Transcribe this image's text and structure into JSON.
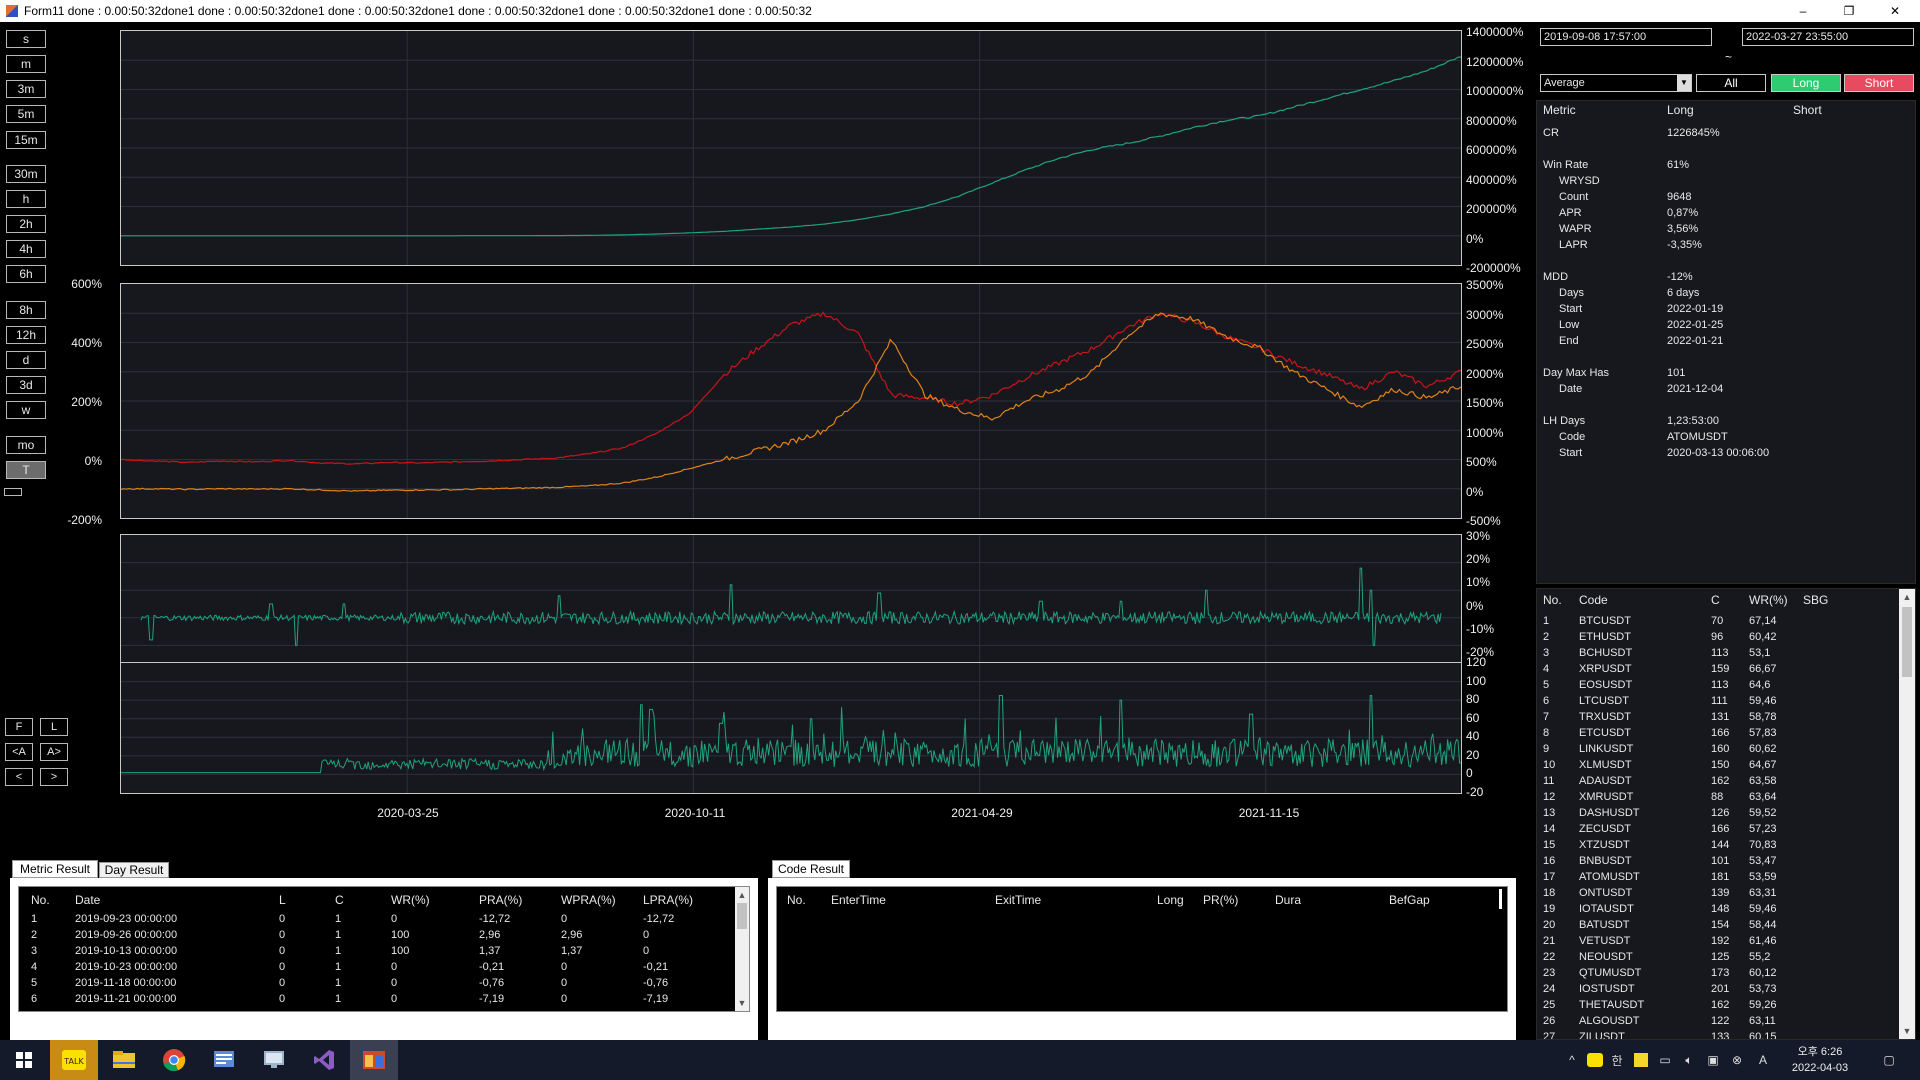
{
  "window": {
    "title": "Form11 done : 0.00:50:32done1 done : 0.00:50:32done1 done : 0.00:50:32done1 done : 0.00:50:32done1 done : 0.00:50:32done1 done : 0.00:50:32",
    "minimize": "–",
    "maximize": "❐",
    "close": "✕"
  },
  "toolbar": {
    "timeframes": [
      "s",
      "m",
      "3m",
      "5m",
      "15m",
      "30m",
      "h",
      "2h",
      "4h",
      "6h",
      "8h",
      "12h",
      "d",
      "3d",
      "w",
      "mo",
      "T"
    ],
    "active": "T",
    "nav": {
      "first": "F",
      "last": "L",
      "jump_left": "<A",
      "jump_right": "A>",
      "prev": "<",
      "next": ">"
    }
  },
  "chart_data": [
    {
      "type": "line",
      "title": "",
      "series_color": "#1fa37c",
      "ylim": [
        -200000,
        1400000
      ],
      "y_ticks": [
        "1400000%",
        "1200000%",
        "1000000%",
        "800000%",
        "600000%",
        "400000%",
        "200000%",
        "0%",
        "-200000%"
      ],
      "series": [
        {
          "values": [
            0,
            0,
            0,
            0,
            0,
            0,
            0,
            0,
            0,
            0,
            0,
            200,
            500,
            1000,
            2500,
            6000,
            12000,
            20000,
            30000,
            45000,
            60000,
            80000,
            110000,
            150000,
            200000,
            270000,
            360000,
            450000,
            530000,
            590000,
            630000,
            680000,
            740000,
            790000,
            820000,
            880000,
            940000,
            1000000,
            1060000,
            1130000,
            1226845
          ]
        }
      ]
    },
    {
      "type": "line",
      "title": "",
      "left_ticks": [
        "600%",
        "400%",
        "200%",
        "0%",
        "-200%"
      ],
      "right_ticks": [
        "3500%",
        "3000%",
        "2500%",
        "2000%",
        "1500%",
        "1000%",
        "500%",
        "0%",
        "-500%"
      ],
      "ylim_left": [
        -200,
        600
      ],
      "ylim_right": [
        -500,
        3500
      ],
      "series": [
        {
          "color": "#c8141a",
          "axis": "left",
          "values": [
            0,
            -5,
            -10,
            -5,
            -8,
            -3,
            -12,
            -15,
            -10,
            -12,
            -8,
            -5,
            0,
            5,
            20,
            40,
            90,
            160,
            290,
            380,
            460,
            500,
            430,
            220,
            210,
            190,
            220,
            280,
            330,
            380,
            450,
            500,
            470,
            420,
            380,
            330,
            290,
            240,
            300,
            250,
            300
          ]
        },
        {
          "color": "#e0821a",
          "axis": "left",
          "values": [
            -100,
            -100,
            -102,
            -100,
            -101,
            -100,
            -104,
            -108,
            -105,
            -104,
            -103,
            -100,
            -98,
            -95,
            -90,
            -80,
            -60,
            -30,
            0,
            30,
            60,
            100,
            200,
            410,
            220,
            170,
            140,
            200,
            240,
            300,
            420,
            500,
            480,
            420,
            380,
            300,
            240,
            180,
            240,
            210,
            250
          ]
        }
      ]
    },
    {
      "type": "line",
      "title": "",
      "series_color": "#1fa37c",
      "ylim": [
        -20,
        30
      ],
      "y_ticks": [
        "30%",
        "20%",
        "10%",
        "0%",
        "-10%",
        "-20%"
      ]
    },
    {
      "type": "line",
      "title": "",
      "series_color": "#1fa37c",
      "ylim": [
        -20,
        120
      ],
      "y_ticks": [
        "120",
        "100",
        "80",
        "60",
        "40",
        "20",
        "0",
        "-20"
      ],
      "x_ticks": [
        "2020-03-25",
        "2020-10-11",
        "2021-04-29",
        "2021-11-15"
      ]
    }
  ],
  "range": {
    "start": "2019-09-08 17:57:00",
    "separator": "~",
    "end": "2022-03-27 23:55:00"
  },
  "mode_select": {
    "value": "Average"
  },
  "filters": {
    "all": "All",
    "long": "Long",
    "short": "Short",
    "long_color": "#2ecc71",
    "short_color": "#e84a5f"
  },
  "metrics": {
    "headers": {
      "metric": "Metric",
      "long": "Long",
      "short": "Short"
    },
    "rows": [
      {
        "label": "CR",
        "value": "1226845%",
        "indent": false
      },
      {
        "label": "Win Rate",
        "value": "61%",
        "indent": false
      },
      {
        "label": "WRYSD",
        "value": "",
        "indent": true
      },
      {
        "label": "Count",
        "value": "9648",
        "indent": true
      },
      {
        "label": "APR",
        "value": "0,87%",
        "indent": true
      },
      {
        "label": "WAPR",
        "value": "3,56%",
        "indent": true
      },
      {
        "label": "LAPR",
        "value": "-3,35%",
        "indent": true
      },
      {
        "label": "MDD",
        "value": "-12%",
        "indent": false
      },
      {
        "label": "Days",
        "value": "6 days",
        "indent": true
      },
      {
        "label": "Start",
        "value": "2022-01-19",
        "indent": true
      },
      {
        "label": "Low",
        "value": "2022-01-25",
        "indent": true
      },
      {
        "label": "End",
        "value": "2022-01-21",
        "indent": true
      },
      {
        "label": "Day Max Has",
        "value": "101",
        "indent": false
      },
      {
        "label": "Date",
        "value": "2021-12-04",
        "indent": true
      },
      {
        "label": "LH Days",
        "value": "1,23:53:00",
        "indent": false
      },
      {
        "label": "Code",
        "value": "ATOMUSDT",
        "indent": true
      },
      {
        "label": "Start",
        "value": "2020-03-13 00:06:00",
        "indent": true
      }
    ]
  },
  "codes": {
    "headers": {
      "no": "No.",
      "code": "Code",
      "c": "C",
      "wr": "WR(%)",
      "sbg": "SBG"
    },
    "rows": [
      {
        "no": "1",
        "code": "BTCUSDT",
        "c": "70",
        "wr": "67,14"
      },
      {
        "no": "2",
        "code": "ETHUSDT",
        "c": "96",
        "wr": "60,42"
      },
      {
        "no": "3",
        "code": "BCHUSDT",
        "c": "113",
        "wr": "53,1"
      },
      {
        "no": "4",
        "code": "XRPUSDT",
        "c": "159",
        "wr": "66,67"
      },
      {
        "no": "5",
        "code": "EOSUSDT",
        "c": "113",
        "wr": "64,6"
      },
      {
        "no": "6",
        "code": "LTCUSDT",
        "c": "111",
        "wr": "59,46"
      },
      {
        "no": "7",
        "code": "TRXUSDT",
        "c": "131",
        "wr": "58,78"
      },
      {
        "no": "8",
        "code": "ETCUSDT",
        "c": "166",
        "wr": "57,83"
      },
      {
        "no": "9",
        "code": "LINKUSDT",
        "c": "160",
        "wr": "60,62"
      },
      {
        "no": "10",
        "code": "XLMUSDT",
        "c": "150",
        "wr": "64,67"
      },
      {
        "no": "11",
        "code": "ADAUSDT",
        "c": "162",
        "wr": "63,58"
      },
      {
        "no": "12",
        "code": "XMRUSDT",
        "c": "88",
        "wr": "63,64"
      },
      {
        "no": "13",
        "code": "DASHUSDT",
        "c": "126",
        "wr": "59,52"
      },
      {
        "no": "14",
        "code": "ZECUSDT",
        "c": "166",
        "wr": "57,23"
      },
      {
        "no": "15",
        "code": "XTZUSDT",
        "c": "144",
        "wr": "70,83"
      },
      {
        "no": "16",
        "code": "BNBUSDT",
        "c": "101",
        "wr": "53,47"
      },
      {
        "no": "17",
        "code": "ATOMUSDT",
        "c": "181",
        "wr": "53,59"
      },
      {
        "no": "18",
        "code": "ONTUSDT",
        "c": "139",
        "wr": "63,31"
      },
      {
        "no": "19",
        "code": "IOTAUSDT",
        "c": "148",
        "wr": "59,46"
      },
      {
        "no": "20",
        "code": "BATUSDT",
        "c": "154",
        "wr": "58,44"
      },
      {
        "no": "21",
        "code": "VETUSDT",
        "c": "192",
        "wr": "61,46"
      },
      {
        "no": "22",
        "code": "NEOUSDT",
        "c": "125",
        "wr": "55,2"
      },
      {
        "no": "23",
        "code": "QTUMUSDT",
        "c": "173",
        "wr": "60,12"
      },
      {
        "no": "24",
        "code": "IOSTUSDT",
        "c": "201",
        "wr": "53,73"
      },
      {
        "no": "25",
        "code": "THETAUSDT",
        "c": "162",
        "wr": "59,26"
      },
      {
        "no": "26",
        "code": "ALGOUSDT",
        "c": "122",
        "wr": "63,11"
      },
      {
        "no": "27",
        "code": "ZILUSDT",
        "c": "133",
        "wr": "60,15"
      }
    ]
  },
  "metric_result": {
    "tabs": [
      "Metric Result",
      "Day Result"
    ],
    "headers": [
      "No.",
      "Date",
      "L",
      "C",
      "WR(%)",
      "PRA(%)",
      "WPRA(%)",
      "LPRA(%)"
    ],
    "rows": [
      [
        "1",
        "2019-09-23 00:00:00",
        "0",
        "1",
        "0",
        "-12,72",
        "0",
        "-12,72"
      ],
      [
        "2",
        "2019-09-26 00:00:00",
        "0",
        "1",
        "100",
        "2,96",
        "2,96",
        "0"
      ],
      [
        "3",
        "2019-10-13 00:00:00",
        "0",
        "1",
        "100",
        "1,37",
        "1,37",
        "0"
      ],
      [
        "4",
        "2019-10-23 00:00:00",
        "0",
        "1",
        "0",
        "-0,21",
        "0",
        "-0,21"
      ],
      [
        "5",
        "2019-11-18 00:00:00",
        "0",
        "1",
        "0",
        "-0,76",
        "0",
        "-0,76"
      ],
      [
        "6",
        "2019-11-21 00:00:00",
        "0",
        "1",
        "0",
        "-7,19",
        "0",
        "-7,19"
      ]
    ]
  },
  "code_result": {
    "tab": "Code Result",
    "headers": [
      "No.",
      "EnterTime",
      "ExitTime",
      "Long",
      "PR(%)",
      "Dura",
      "BefGap"
    ]
  },
  "taskbar": {
    "apps": [
      "windows-start",
      "kakaotalk",
      "file-explorer",
      "chrome",
      "outlook",
      "remote-desktop",
      "visual-studio",
      "form-app"
    ],
    "clock_time": "오후 6:26",
    "clock_date": "2022-04-03",
    "tray_icons": [
      "chevron-up",
      "kakao-tray",
      "ime-han",
      "notes",
      "battery",
      "volume",
      "network",
      "close-circle",
      "ime-a",
      "notification"
    ]
  }
}
